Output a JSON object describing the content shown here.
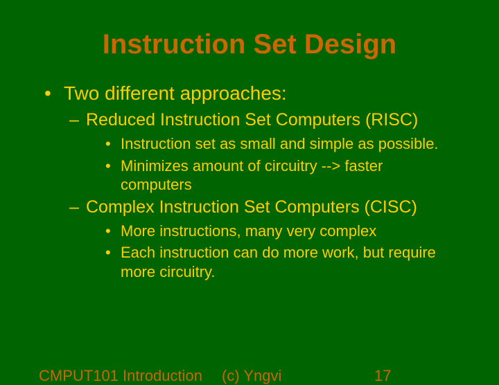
{
  "colors": {
    "background": "#006400",
    "title_color": "#cc6600",
    "body_color": "#ffcc00",
    "footer_color": "#cc6600"
  },
  "typography": {
    "title_fontsize": 40,
    "l1_fontsize": 28,
    "l2_fontsize": 25,
    "l3_fontsize": 22,
    "footer_fontsize": 22,
    "font_family": "Arial"
  },
  "slide": {
    "title": "Instruction Set Design",
    "bullets": {
      "l1_1": "Two different approaches:",
      "l2_1": "Reduced Instruction Set Computers (RISC)",
      "l3_1": "Instruction set as small and simple as possible.",
      "l3_2": "Minimizes amount of circuitry --> faster computers",
      "l2_2": "Complex Instruction Set Computers (CISC)",
      "l3_3": "More instructions, many very complex",
      "l3_4": "Each instruction can do more work, but require more circuitry."
    },
    "footer": {
      "left": "CMPUT101 Introduction",
      "center": "(c) Yngvi",
      "page": "17"
    }
  }
}
